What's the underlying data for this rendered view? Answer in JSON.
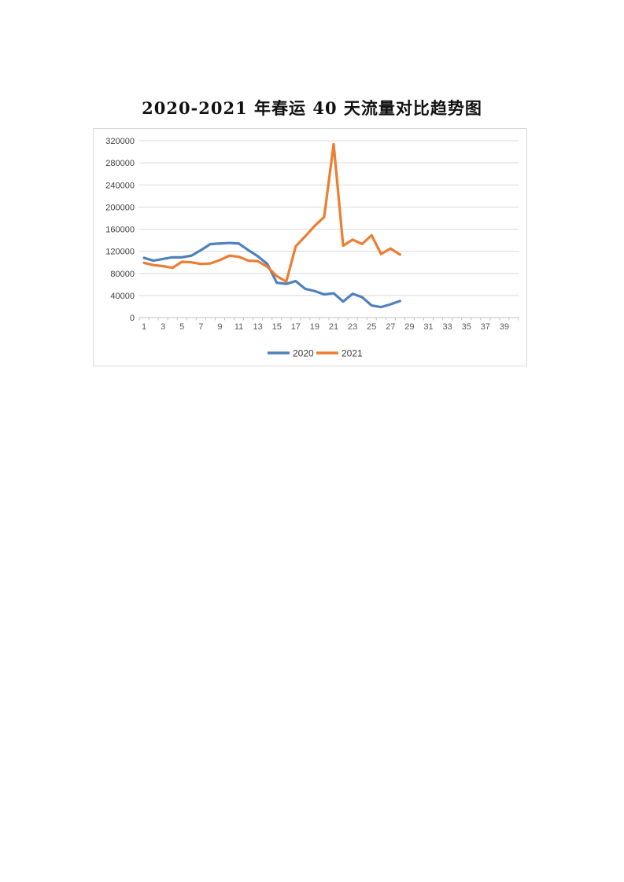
{
  "title": {
    "text": "2020-2021 年春运 40 天流量对比趋势图"
  },
  "chart_data": {
    "type": "line",
    "title": "2020-2021 年春运 40 天流量对比趋势图",
    "xlabel": "",
    "ylabel": "",
    "categories_range": [
      1,
      40
    ],
    "x_label_ticks": [
      1,
      3,
      5,
      7,
      9,
      11,
      13,
      15,
      17,
      19,
      21,
      23,
      25,
      27,
      29,
      31,
      33,
      35,
      37,
      39
    ],
    "x": [
      1,
      2,
      3,
      4,
      5,
      6,
      7,
      8,
      9,
      10,
      11,
      12,
      13,
      14,
      15,
      16,
      17,
      18,
      19,
      20,
      21,
      22,
      23,
      24,
      25,
      26,
      27,
      28
    ],
    "series": [
      {
        "name": "2020",
        "color": "#4E81BD",
        "values": [
          108000,
          103000,
          106000,
          109000,
          109000,
          112000,
          122000,
          133000,
          134000,
          135000,
          134000,
          122000,
          111000,
          97000,
          63000,
          61000,
          66000,
          52000,
          48000,
          42000,
          44000,
          29000,
          43000,
          37000,
          22000,
          19000,
          24000,
          30000
        ]
      },
      {
        "name": "2021",
        "color": "#ED7D31",
        "values": [
          99000,
          95000,
          93000,
          90000,
          101000,
          100000,
          97000,
          98000,
          104000,
          112000,
          110000,
          103000,
          102000,
          92000,
          75000,
          65000,
          129000,
          147000,
          166000,
          182000,
          314000,
          130000,
          141000,
          133000,
          149000,
          115000,
          125000,
          114000
        ]
      }
    ],
    "ylim": [
      0,
      320000
    ],
    "y_ticks": [
      0,
      40000,
      80000,
      120000,
      160000,
      200000,
      240000,
      280000,
      320000
    ],
    "grid": true,
    "legend_position": "bottom",
    "legend": [
      "2020",
      "2021"
    ]
  },
  "style": {
    "grid_color": "#d9d9d9",
    "axis_color": "#c0c0c0",
    "x_label_color": "#595959",
    "y_label_color": "#404040",
    "frame_color": "#d9d9d9",
    "title_color": "#111111",
    "background": "#ffffff"
  }
}
